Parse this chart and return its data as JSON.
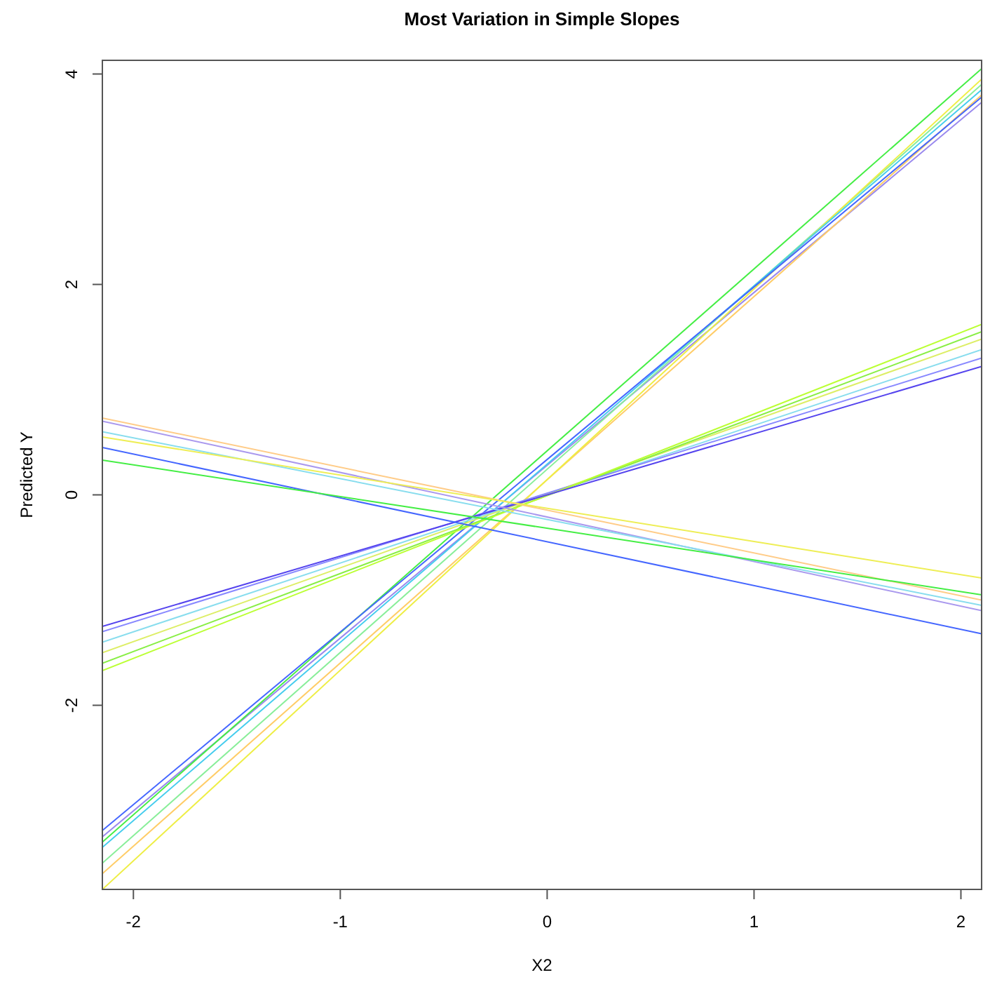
{
  "chart_data": {
    "type": "line",
    "title": "Most Variation in Simple Slopes",
    "xlabel": "X2",
    "ylabel": "Predicted Y",
    "x": [
      -2.15,
      2.1
    ],
    "xlim": [
      -2.15,
      2.1
    ],
    "ylim": [
      -3.75,
      4.13
    ],
    "xticks": [
      -2,
      -1,
      0,
      1,
      2
    ],
    "yticks": [
      -2,
      0,
      2,
      4
    ],
    "grid": false,
    "marker": "none",
    "line_style": "solid",
    "series": [
      {
        "color": "#9988ee",
        "values": [
          -3.25,
          3.73
        ]
      },
      {
        "color": "#ffcc66",
        "values": [
          -3.6,
          3.8
        ]
      },
      {
        "color": "#88ee99",
        "values": [
          -3.5,
          3.9
        ]
      },
      {
        "color": "#eeee44",
        "values": [
          -3.75,
          3.95
        ]
      },
      {
        "color": "#44ccee",
        "values": [
          -3.35,
          3.85
        ]
      },
      {
        "color": "#44ee44",
        "values": [
          -3.3,
          4.05
        ]
      },
      {
        "color": "#4466ff",
        "values": [
          -3.19,
          3.78
        ]
      },
      {
        "color": "#88ddee",
        "values": [
          -1.4,
          1.38
        ]
      },
      {
        "color": "#ddee66",
        "values": [
          -1.5,
          1.48
        ]
      },
      {
        "color": "#8888ff",
        "values": [
          -1.3,
          1.3
        ]
      },
      {
        "color": "#88ee44",
        "values": [
          -1.6,
          1.55
        ]
      },
      {
        "color": "#bbff33",
        "values": [
          -1.67,
          1.62
        ]
      },
      {
        "color": "#5544ee",
        "values": [
          -1.25,
          1.22
        ]
      },
      {
        "color": "#ffcc88",
        "values": [
          0.73,
          -1.0
        ]
      },
      {
        "color": "#aa99ee",
        "values": [
          0.7,
          -1.1
        ]
      },
      {
        "color": "#88ddee",
        "values": [
          0.6,
          -1.05
        ]
      },
      {
        "color": "#eeee55",
        "values": [
          0.55,
          -0.79
        ]
      },
      {
        "color": "#4466ff",
        "values": [
          0.45,
          -1.32
        ]
      },
      {
        "color": "#44ee44",
        "values": [
          0.33,
          -0.95
        ]
      }
    ]
  }
}
